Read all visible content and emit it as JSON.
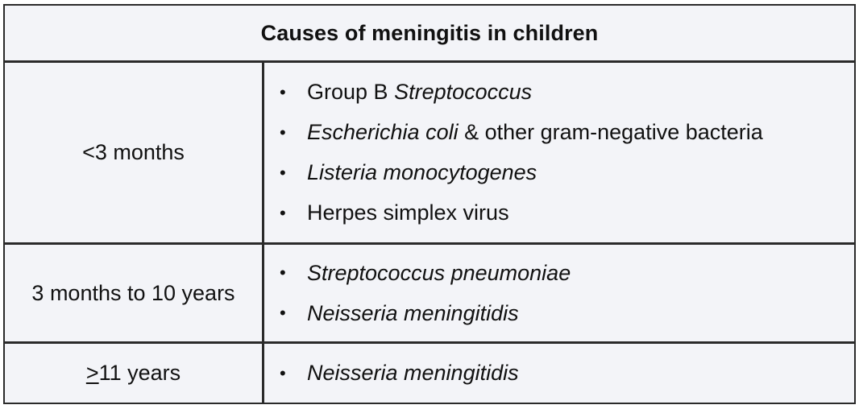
{
  "table": {
    "title": "Causes of meningitis in children",
    "bullet_glyph": "•",
    "rows": [
      {
        "age": "<3 months",
        "causes": [
          {
            "parts": [
              {
                "text": "Group B ",
                "italic": false
              },
              {
                "text": "Streptococcus",
                "italic": true
              }
            ]
          },
          {
            "parts": [
              {
                "text": "Escherichia coli",
                "italic": true
              },
              {
                "text": " & other gram-negative bacteria",
                "italic": false
              }
            ]
          },
          {
            "parts": [
              {
                "text": "Listeria monocytogenes",
                "italic": true
              }
            ]
          },
          {
            "parts": [
              {
                "text": "Herpes simplex virus",
                "italic": false
              }
            ]
          }
        ]
      },
      {
        "age": "3 months to 10 years",
        "causes": [
          {
            "parts": [
              {
                "text": "Streptococcus pneumoniae",
                "italic": true
              }
            ]
          },
          {
            "parts": [
              {
                "text": "Neisseria meningitidis",
                "italic": true
              }
            ]
          }
        ]
      },
      {
        "age_prefix": ">",
        "age_rest": "11 years",
        "causes": [
          {
            "parts": [
              {
                "text": "Neisseria meningitidis",
                "italic": true
              }
            ]
          }
        ]
      }
    ]
  }
}
